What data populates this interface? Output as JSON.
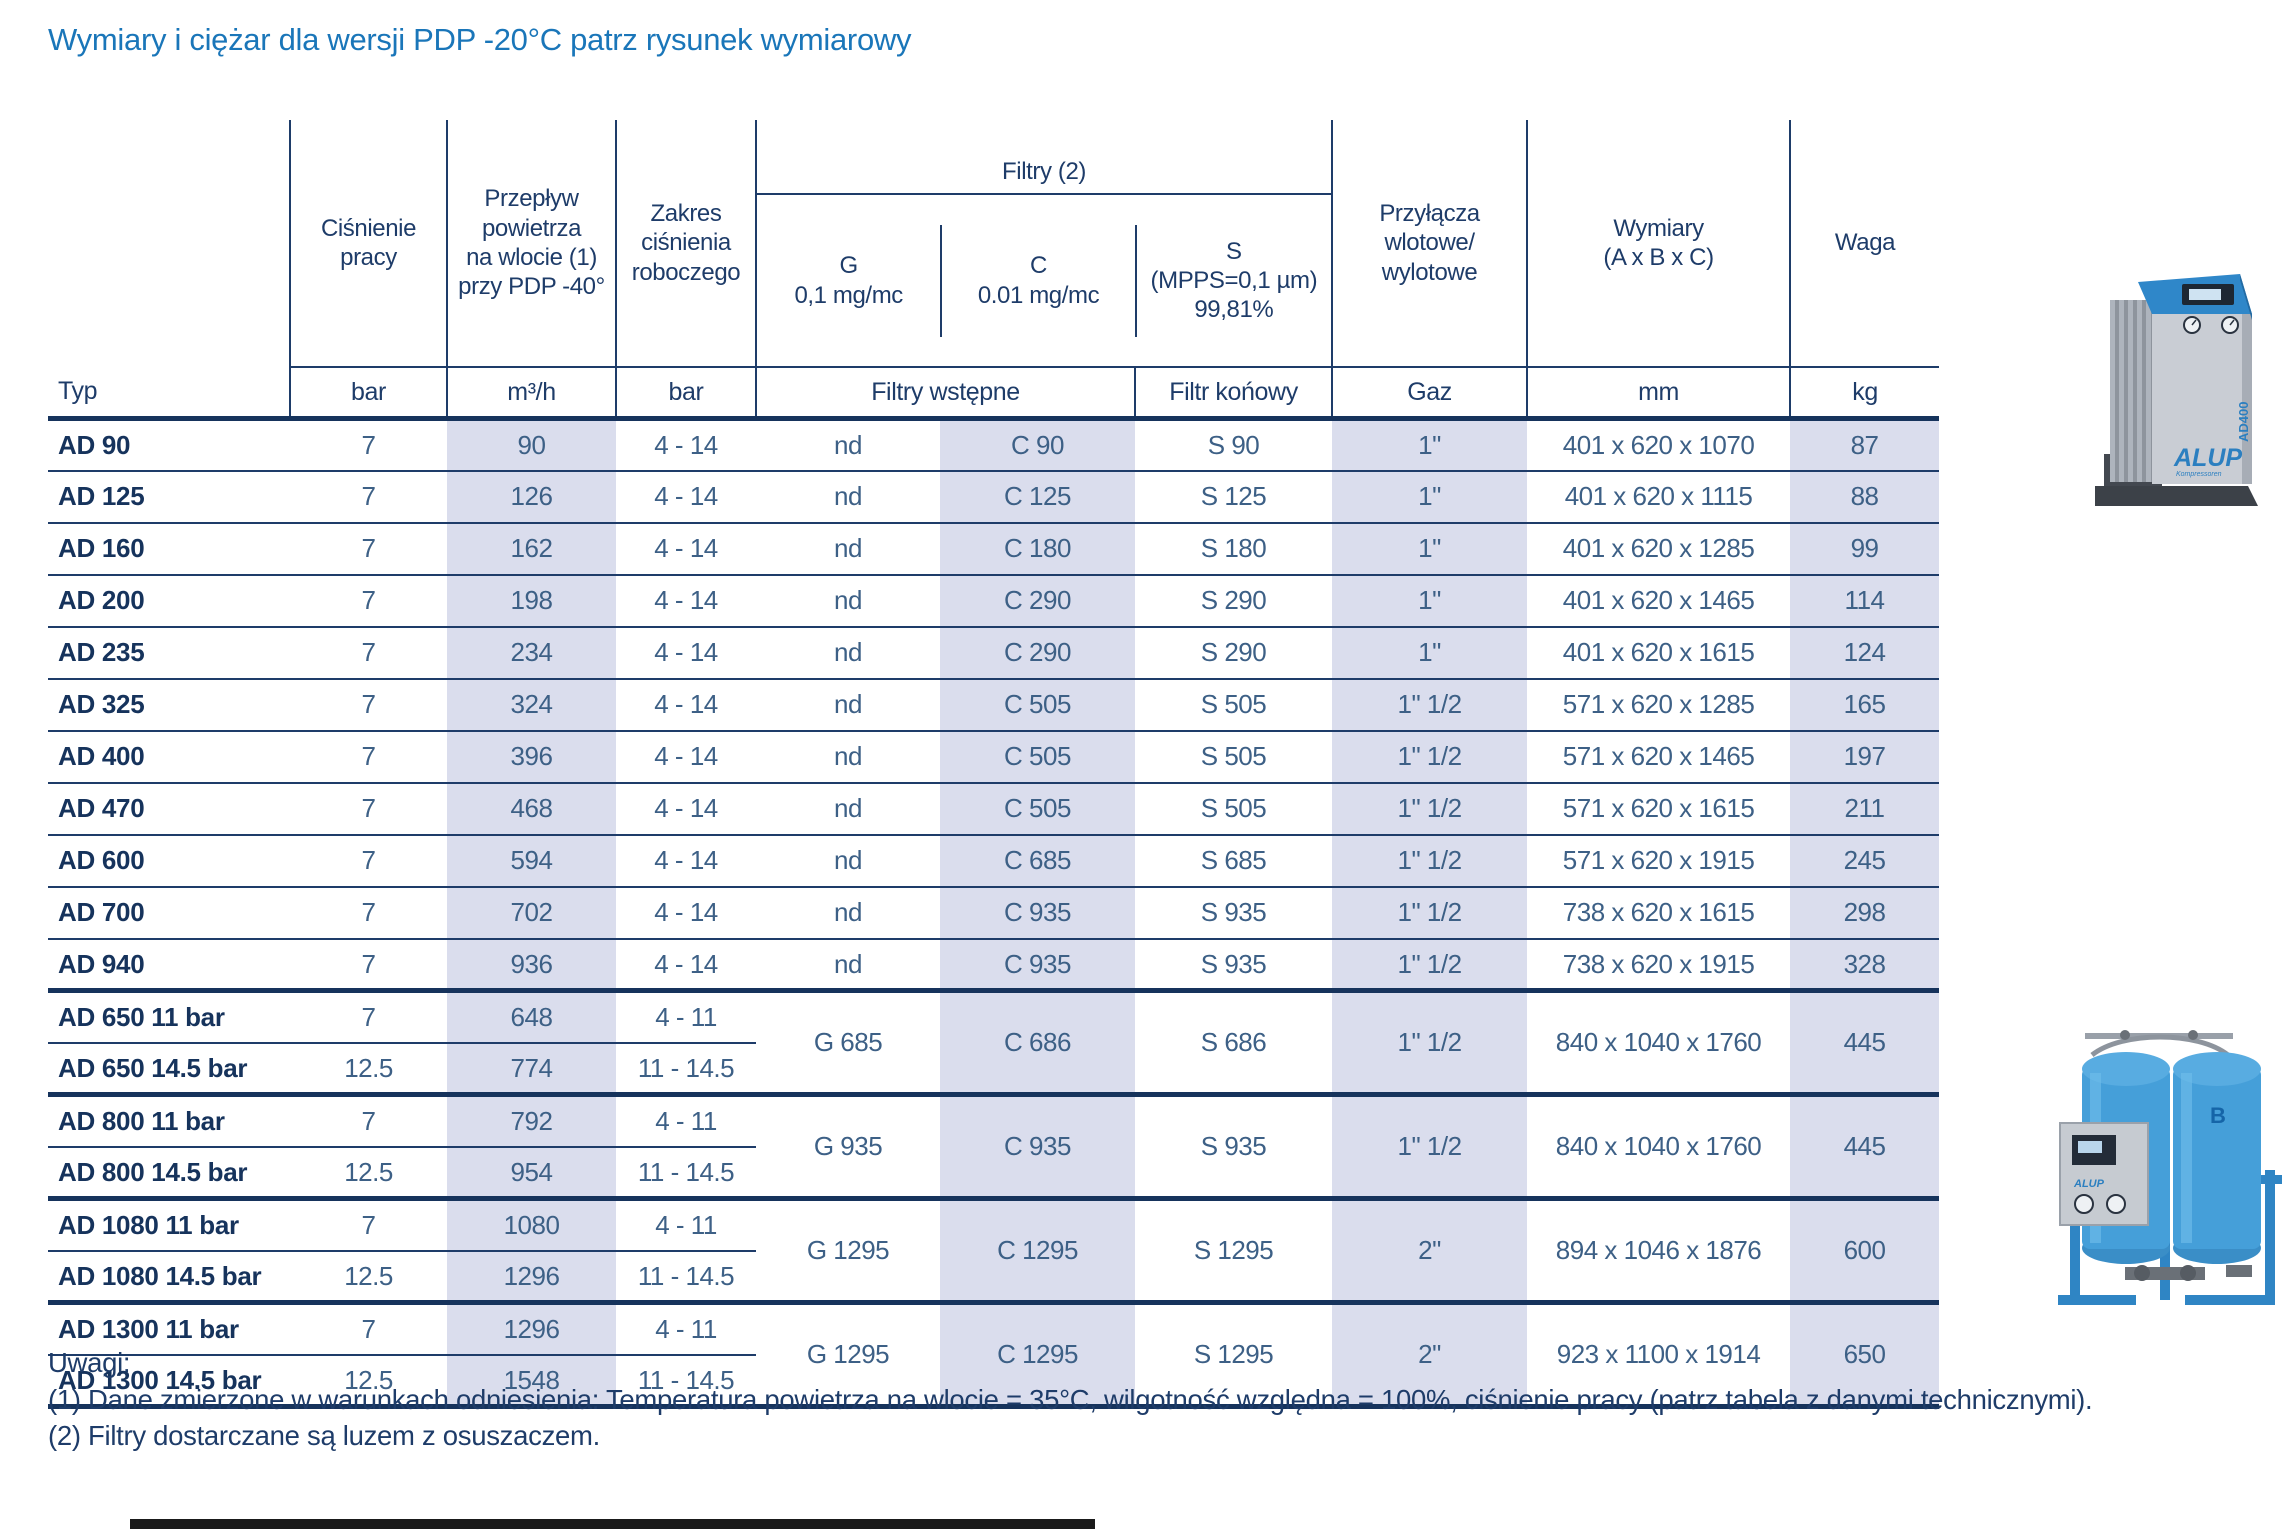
{
  "title": "Wymiary i ciężar dla wersji PDP -20°C patrz rysunek wymiarowy",
  "colors": {
    "title_blue": "#1a76b9",
    "header_navy": "#1e3c69",
    "value_text": "#3d6086",
    "column_shade": "#dadded",
    "machine_blue": "#459fd9"
  },
  "table": {
    "header": {
      "cisnienie": "Ciśnienie\npracy",
      "przeplyw": "Przepływ\npowietrza\nna wlocie (1)\nprzy PDP -40°",
      "zakres": "Zakres\nciśnienia\nroboczego",
      "filtry": "Filtry (2)",
      "g": "G\n0,1 mg/mc",
      "c": "C\n0.01 mg/mc",
      "s": "S\n(MPPS=0,1 µm)\n99,81%",
      "przylacza": "Przyłącza\nwlotowe/\nwylotowe",
      "wymiary": "Wymiary\n(A x B x C)",
      "waga": "Waga"
    },
    "units": {
      "typ": "Typ",
      "cisnienie": "bar",
      "przeplyw": "m³/h",
      "zakres": "bar",
      "filtry_wstepne": "Filtry wstępne",
      "filtr_koncowy": "Filtr końowy",
      "gaz": "Gaz",
      "wymiary": "mm",
      "waga": "kg"
    },
    "rows": [
      {
        "typ": "AD 90",
        "cisnienie": "7",
        "przeplyw": "90",
        "zakres": "4 - 14",
        "g": "nd",
        "c": "C 90",
        "s": "S 90",
        "gaz": "1\"",
        "wymiary": "401 x 620 x 1070",
        "waga": "87"
      },
      {
        "typ": "AD 125",
        "cisnienie": "7",
        "przeplyw": "126",
        "zakres": "4 - 14",
        "g": "nd",
        "c": "C 125",
        "s": "S 125",
        "gaz": "1\"",
        "wymiary": "401 x 620 x 1115",
        "waga": "88"
      },
      {
        "typ": "AD 160",
        "cisnienie": "7",
        "przeplyw": "162",
        "zakres": "4 - 14",
        "g": "nd",
        "c": "C 180",
        "s": "S 180",
        "gaz": "1\"",
        "wymiary": "401 x 620 x 1285",
        "waga": "99"
      },
      {
        "typ": "AD 200",
        "cisnienie": "7",
        "przeplyw": "198",
        "zakres": "4 - 14",
        "g": "nd",
        "c": "C 290",
        "s": "S 290",
        "gaz": "1\"",
        "wymiary": "401 x 620 x 1465",
        "waga": "114"
      },
      {
        "typ": "AD 235",
        "cisnienie": "7",
        "przeplyw": "234",
        "zakres": "4 - 14",
        "g": "nd",
        "c": "C 290",
        "s": "S 290",
        "gaz": "1\"",
        "wymiary": "401 x 620 x 1615",
        "waga": "124"
      },
      {
        "typ": "AD 325",
        "cisnienie": "7",
        "przeplyw": "324",
        "zakres": "4 - 14",
        "g": "nd",
        "c": "C 505",
        "s": "S 505",
        "gaz": "1\" 1/2",
        "wymiary": "571 x 620 x 1285",
        "waga": "165"
      },
      {
        "typ": "AD 400",
        "cisnienie": "7",
        "przeplyw": "396",
        "zakres": "4 - 14",
        "g": "nd",
        "c": "C 505",
        "s": "S 505",
        "gaz": "1\" 1/2",
        "wymiary": "571 x 620 x 1465",
        "waga": "197"
      },
      {
        "typ": "AD 470",
        "cisnienie": "7",
        "przeplyw": "468",
        "zakres": "4 - 14",
        "g": "nd",
        "c": "C 505",
        "s": "S 505",
        "gaz": "1\" 1/2",
        "wymiary": "571 x 620 x 1615",
        "waga": "211"
      },
      {
        "typ": "AD 600",
        "cisnienie": "7",
        "przeplyw": "594",
        "zakres": "4 - 14",
        "g": "nd",
        "c": "C 685",
        "s": "S 685",
        "gaz": "1\" 1/2",
        "wymiary": "571 x 620 x 1915",
        "waga": "245"
      },
      {
        "typ": "AD 700",
        "cisnienie": "7",
        "przeplyw": "702",
        "zakres": "4 - 14",
        "g": "nd",
        "c": "C 935",
        "s": "S 935",
        "gaz": "1\" 1/2",
        "wymiary": "738 x 620 x 1615",
        "waga": "298"
      },
      {
        "typ": "AD 940",
        "cisnienie": "7",
        "przeplyw": "936",
        "zakres": "4 - 14",
        "g": "nd",
        "c": "C 935",
        "s": "S 935",
        "gaz": "1\" 1/2",
        "wymiary": "738 x 620 x 1915",
        "waga": "328"
      },
      {
        "pair": [
          {
            "typ": "AD 650 11 bar",
            "cisnienie": "7",
            "przeplyw": "648",
            "zakres": "4 - 11"
          },
          {
            "typ": "AD 650 14.5 bar",
            "cisnienie": "12.5",
            "przeplyw": "774",
            "zakres": "11 - 14.5"
          }
        ],
        "g": "G 685",
        "c": "C 686",
        "s": "S 686",
        "gaz": "1\" 1/2",
        "wymiary": "840 x 1040 x 1760",
        "waga": "445"
      },
      {
        "pair": [
          {
            "typ": "AD 800 11 bar",
            "cisnienie": "7",
            "przeplyw": "792",
            "zakres": "4 - 11"
          },
          {
            "typ": "AD 800 14.5 bar",
            "cisnienie": "12.5",
            "przeplyw": "954",
            "zakres": "11 - 14.5"
          }
        ],
        "g": "G 935",
        "c": "C 935",
        "s": "S 935",
        "gaz": "1\" 1/2",
        "wymiary": "840 x 1040 x 1760",
        "waga": "445"
      },
      {
        "pair": [
          {
            "typ": "AD 1080 11 bar",
            "cisnienie": "7",
            "przeplyw": "1080",
            "zakres": "4 - 11"
          },
          {
            "typ": "AD 1080 14.5 bar",
            "cisnienie": "12.5",
            "przeplyw": "1296",
            "zakres": "11 - 14.5"
          }
        ],
        "g": "G 1295",
        "c": "C 1295",
        "s": "S 1295",
        "gaz": "2\"",
        "wymiary": "894 x 1046 x 1876",
        "waga": "600"
      },
      {
        "pair": [
          {
            "typ": "AD 1300 11 bar",
            "cisnienie": "7",
            "przeplyw": "1296",
            "zakres": "4 - 11"
          },
          {
            "typ": "AD 1300 14.5 bar",
            "cisnienie": "12.5",
            "przeplyw": "1548",
            "zakres": "11 - 14.5"
          }
        ],
        "g": "G 1295",
        "c": "C 1295",
        "s": "S 1295",
        "gaz": "2\"",
        "wymiary": "923 x 1100 x 1914",
        "waga": "650"
      }
    ]
  },
  "notes": {
    "heading": "Uwagi:",
    "note1": "(1) Dane zmierzone w warunkach odniesienia: Temperatura powietrza na wlocie = 35°C, wilgotność względna = 100%, ciśnienie pracy (patrz tabela z danymi technicznymi).",
    "note2": "(2) Filtry dostarczane są luzem z osuszaczem."
  },
  "images": {
    "single": {
      "brand": "ALUP",
      "sub": "Kompressoren",
      "model": "AD400"
    },
    "twin": {
      "brand": "ALUP",
      "letter": "B"
    }
  }
}
